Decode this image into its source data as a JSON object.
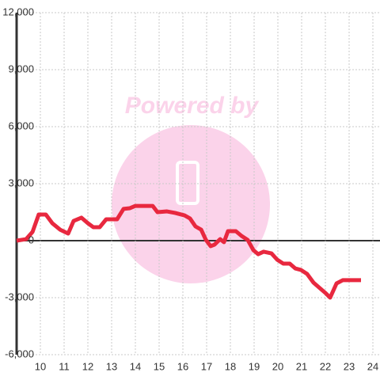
{
  "chart_data": {
    "type": "line",
    "watermark": "Powered by",
    "x": [
      9.0,
      9.4,
      9.67,
      9.93,
      10.23,
      10.5,
      10.83,
      11.17,
      11.4,
      11.73,
      12.0,
      12.23,
      12.5,
      12.77,
      13.23,
      13.5,
      13.77,
      14.0,
      14.73,
      14.93,
      15.33,
      15.67,
      16.07,
      16.3,
      16.53,
      16.77,
      16.97,
      17.17,
      17.33,
      17.57,
      17.73,
      17.9,
      18.23,
      18.47,
      18.73,
      18.97,
      19.17,
      19.4,
      19.73,
      19.97,
      20.23,
      20.5,
      20.73,
      20.97,
      21.23,
      21.5,
      21.73,
      22.0,
      22.2,
      22.47,
      22.73,
      23.5
    ],
    "series": [
      {
        "color": "#e8283f",
        "values": [
          0,
          80,
          460,
          1375,
          1375,
          920,
          580,
          375,
          1040,
          1210,
          920,
          710,
          710,
          1125,
          1125,
          1670,
          1710,
          1830,
          1830,
          1500,
          1540,
          1460,
          1330,
          1170,
          750,
          580,
          40,
          -290,
          -210,
          80,
          -80,
          500,
          500,
          250,
          40,
          -500,
          -710,
          -580,
          -670,
          -1000,
          -1210,
          -1210,
          -1460,
          -1540,
          -1750,
          -2210,
          -2460,
          -2750,
          -3000,
          -2250,
          -2080,
          -2080
        ]
      }
    ],
    "xlim": [
      9.0,
      24.3
    ],
    "xticks": [
      10,
      11,
      12,
      13,
      14,
      15,
      16,
      17,
      18,
      19,
      20,
      21,
      22,
      23,
      24
    ],
    "ylim": [
      -6000,
      12000
    ],
    "yticks": [
      {
        "value": -6000,
        "label": "-6,000"
      },
      {
        "value": -3000,
        "label": "-3,000"
      },
      0,
      {
        "value": 3000,
        "label": "3,000"
      },
      {
        "value": 6000,
        "label": "6,000"
      },
      {
        "value": 9000,
        "label": "9,000"
      },
      {
        "value": 12000,
        "label": "12,000"
      }
    ],
    "grid": true
  }
}
